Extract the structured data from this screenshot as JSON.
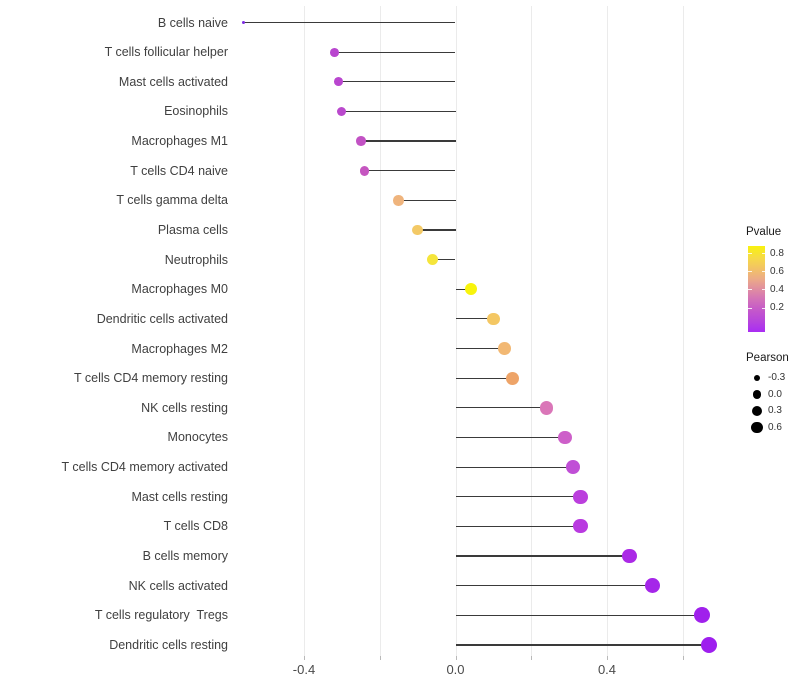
{
  "figure": {
    "background": "#ffffff"
  },
  "axis": {
    "x_major_tick_labels": [
      "-0.4",
      "0.0",
      "0.4"
    ],
    "x_major_tick_values": [
      -0.4,
      0.0,
      0.4
    ],
    "x_minor_tick_values": [
      -0.4,
      -0.2,
      0.0,
      0.2,
      0.4,
      0.6
    ]
  },
  "legend": {
    "pvalue": {
      "title": "Pvalue",
      "tick_labels": [
        "0.8",
        "0.6",
        "0.4",
        "0.2"
      ],
      "tick_values": [
        0.8,
        0.6,
        0.4,
        0.2
      ],
      "gradient_bottom": "#a92df3",
      "gradient_top": "#f9f20d"
    },
    "pearson": {
      "title": "Pearson",
      "entries": [
        {
          "label": "-0.3",
          "value": -0.3,
          "diameter": 6.6
        },
        {
          "label": "0.0",
          "value": 0.0,
          "diameter": 8.6
        },
        {
          "label": "0.3",
          "value": 0.3,
          "diameter": 10.0
        },
        {
          "label": "0.6",
          "value": 0.6,
          "diameter": 11.4
        }
      ]
    }
  },
  "chart_data": {
    "type": "scatter",
    "variant": "lollipop",
    "title": "",
    "xlabel": "",
    "ylabel": "",
    "xlim": [
      -0.59,
      0.69
    ],
    "grid": true,
    "legend_position": "right",
    "x_ticks": [
      -0.4,
      -0.2,
      0.0,
      0.2,
      0.4,
      0.6
    ],
    "x_labeled_ticks": [
      "-0.4",
      "0.0",
      "0.4"
    ],
    "size_encoding": "Pearson",
    "color_encoding": "Pvalue",
    "points": [
      {
        "label": "B cells naive",
        "pearson": -0.56,
        "pvalue_approx": 0.005,
        "color": "#7d2ce2"
      },
      {
        "label": "T cells follicular helper",
        "pearson": -0.32,
        "pvalue_approx": 0.12,
        "color": "#b946cf"
      },
      {
        "label": "Mast cells activated",
        "pearson": -0.31,
        "pvalue_approx": 0.12,
        "color": "#b946cf"
      },
      {
        "label": "Eosinophils",
        "pearson": -0.3,
        "pvalue_approx": 0.13,
        "color": "#ba49cd"
      },
      {
        "label": "Macrophages M1",
        "pearson": -0.25,
        "pvalue_approx": 0.16,
        "color": "#c252c4"
      },
      {
        "label": "T cells CD4 naive",
        "pearson": -0.24,
        "pvalue_approx": 0.17,
        "color": "#c556c0"
      },
      {
        "label": "T cells gamma delta",
        "pearson": -0.15,
        "pvalue_approx": 0.6,
        "color": "#efb47d"
      },
      {
        "label": "Plasma cells",
        "pearson": -0.1,
        "pvalue_approx": 0.68,
        "color": "#f3c966"
      },
      {
        "label": "Neutrophils",
        "pearson": -0.06,
        "pvalue_approx": 0.8,
        "color": "#f5e53b"
      },
      {
        "label": "Macrophages M0",
        "pearson": 0.04,
        "pvalue_approx": 0.88,
        "color": "#f8f40c"
      },
      {
        "label": "Dendritic cells activated",
        "pearson": 0.1,
        "pvalue_approx": 0.69,
        "color": "#f4c763"
      },
      {
        "label": "Macrophages M2",
        "pearson": 0.13,
        "pvalue_approx": 0.63,
        "color": "#f2b873"
      },
      {
        "label": "T cells CD4 memory resting",
        "pearson": 0.15,
        "pvalue_approx": 0.57,
        "color": "#eea468"
      },
      {
        "label": "NK cells resting",
        "pearson": 0.24,
        "pvalue_approx": 0.34,
        "color": "#da76b8"
      },
      {
        "label": "Monocytes",
        "pearson": 0.29,
        "pvalue_approx": 0.22,
        "color": "#cd5fc9"
      },
      {
        "label": "T cells CD4 memory activated",
        "pearson": 0.31,
        "pvalue_approx": 0.15,
        "color": "#c04fd6"
      },
      {
        "label": "Mast cells resting",
        "pearson": 0.33,
        "pvalue_approx": 0.11,
        "color": "#bb3fdd"
      },
      {
        "label": "T cells CD8",
        "pearson": 0.33,
        "pvalue_approx": 0.1,
        "color": "#b93ae0"
      },
      {
        "label": "B cells memory",
        "pearson": 0.46,
        "pvalue_approx": 0.05,
        "color": "#ab2ae6"
      },
      {
        "label": "NK cells activated",
        "pearson": 0.52,
        "pvalue_approx": 0.03,
        "color": "#a526e9"
      },
      {
        "label": "T cells regulatory  Tregs",
        "pearson": 0.65,
        "pvalue_approx": 0.012,
        "color": "#a021ec"
      },
      {
        "label": "Dendritic cells resting",
        "pearson": 0.67,
        "pvalue_approx": 0.01,
        "color": "#9e1fee"
      }
    ]
  }
}
